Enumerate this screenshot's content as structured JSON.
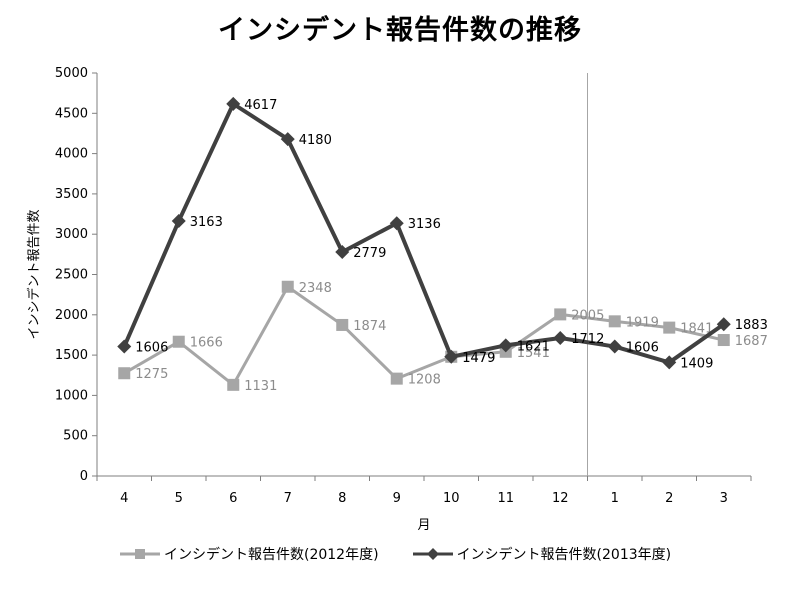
{
  "chart_data": {
    "type": "line",
    "title": "インシデント報告件数の推移",
    "xlabel": "月",
    "ylabel": "インシデント報告件数",
    "categories": [
      "4",
      "5",
      "6",
      "7",
      "8",
      "9",
      "10",
      "11",
      "12",
      "1",
      "2",
      "3"
    ],
    "ylim": [
      0,
      5000
    ],
    "yticks": [
      0,
      500,
      1000,
      1500,
      2000,
      2500,
      3000,
      3500,
      4000,
      4500,
      5000
    ],
    "grid": false,
    "legend_position": "bottom",
    "series": [
      {
        "name": "インシデント報告件数(2012年度)",
        "color": "#a6a6a6",
        "marker": "square",
        "values": [
          1275,
          1666,
          1131,
          2348,
          1874,
          1208,
          1479,
          1541,
          2005,
          1919,
          1841,
          1687
        ]
      },
      {
        "name": "インシデント報告件数(2013年度)",
        "color": "#404040",
        "marker": "diamond",
        "values": [
          1606,
          3163,
          4617,
          4180,
          2779,
          3136,
          1479,
          1621,
          1712,
          1606,
          1409,
          1883
        ]
      }
    ]
  }
}
